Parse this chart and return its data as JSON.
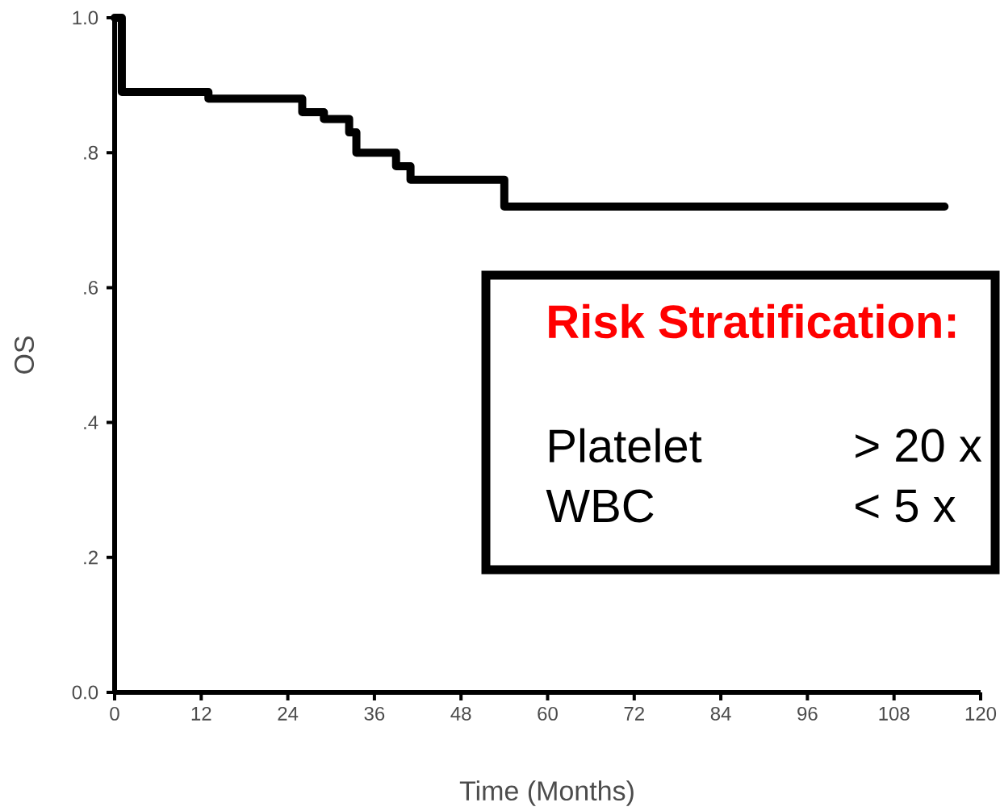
{
  "chart_data": {
    "type": "step",
    "xlabel": "Time (Months)",
    "ylabel": "OS",
    "x": [
      0,
      1,
      13,
      26,
      29,
      32.5,
      33.5,
      39,
      41,
      54,
      115
    ],
    "series": [
      {
        "color": "#000000",
        "values": [
          1.0,
          0.89,
          0.88,
          0.86,
          0.85,
          0.83,
          0.8,
          0.78,
          0.76,
          0.72,
          0.72
        ]
      }
    ],
    "xlim": [
      0,
      120
    ],
    "ylim": [
      0,
      1
    ],
    "xticks": [
      0,
      12,
      24,
      36,
      48,
      60,
      72,
      84,
      96,
      108,
      120
    ],
    "yticks": [
      {
        "value": 0,
        "label": "0.0"
      },
      {
        "value": 0.2,
        "label": ".2"
      },
      {
        "value": 0.4,
        "label": ".4"
      },
      {
        "value": 0.6,
        "label": ".6"
      },
      {
        "value": 0.8,
        "label": ".8"
      },
      {
        "value": 1.0,
        "label": "1.0"
      }
    ],
    "annotations": [
      "Risk Stratification:",
      "Platelet",
      "> 20 x",
      "WBC",
      "< 5 x"
    ]
  }
}
